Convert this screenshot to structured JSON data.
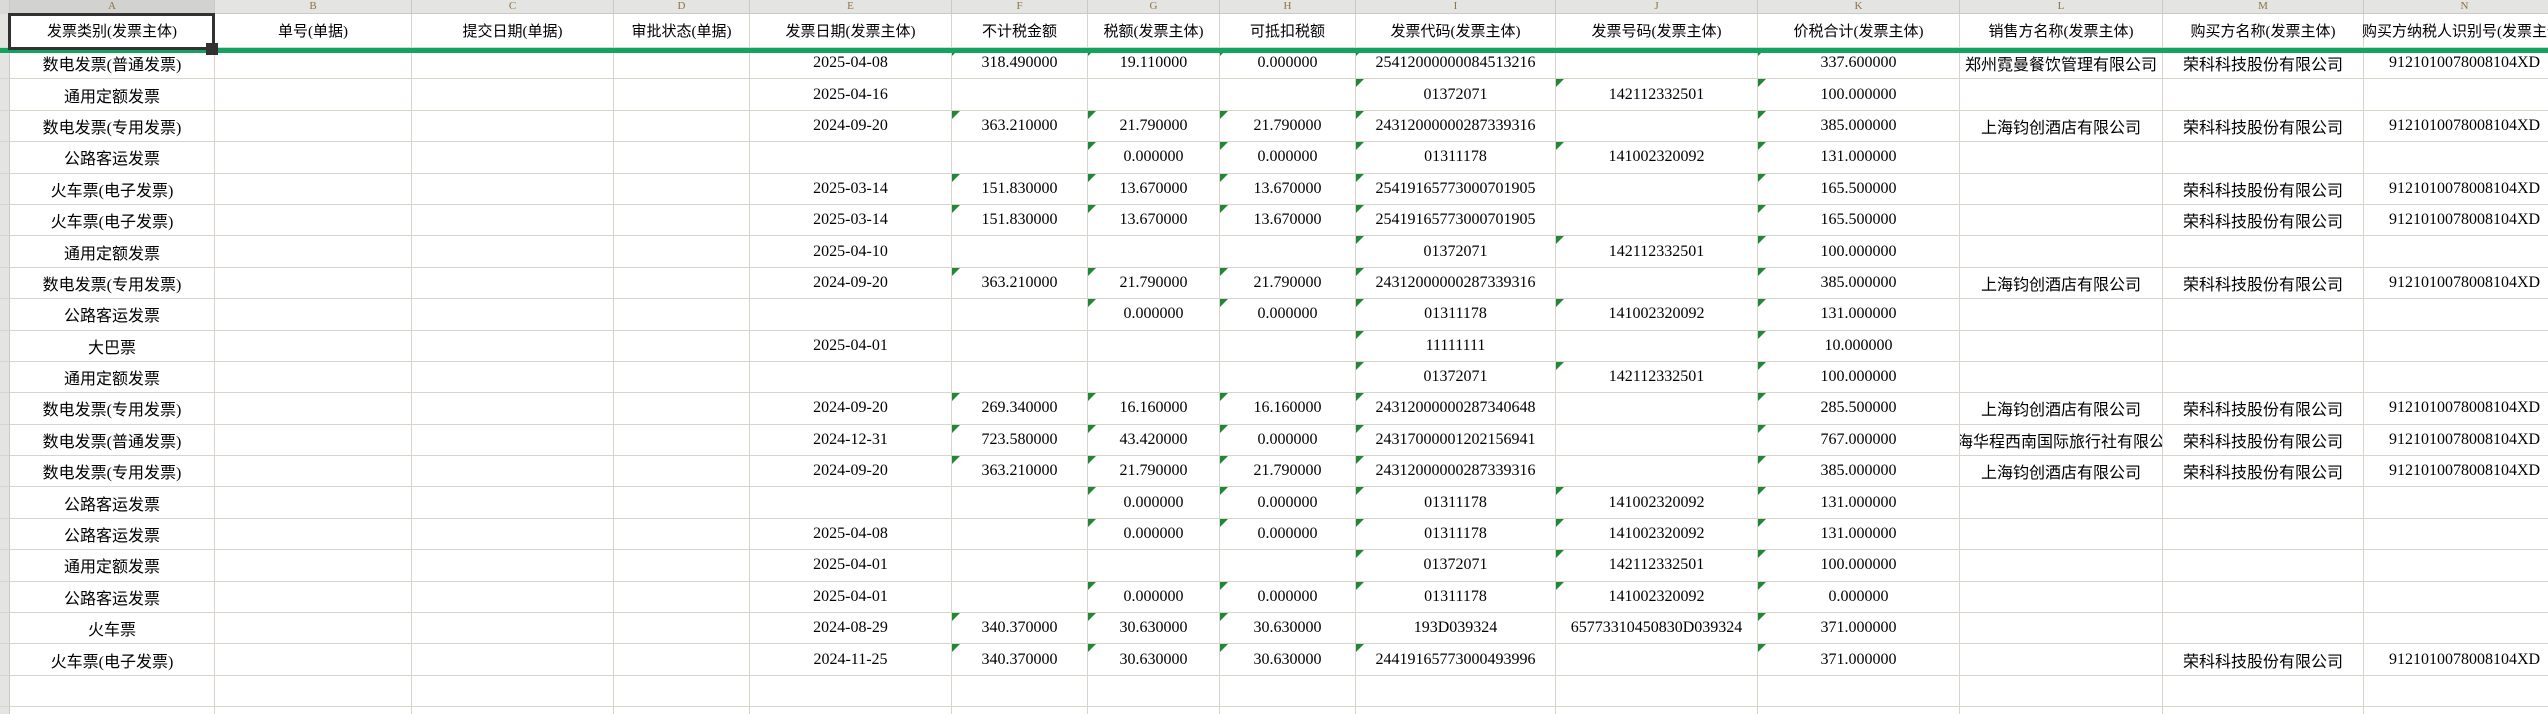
{
  "sheet": {
    "name": "invoice-spreadsheet",
    "colors": {
      "freeze_line_green": "#12a35f",
      "error_triangle_green": "#1f8736",
      "header_letter_gold": "#8f7340",
      "selection_border": "#323232",
      "gridline": "#d8d4cb"
    },
    "columns": [
      {
        "letter": "A",
        "header": "发票类别(发票主体)"
      },
      {
        "letter": "B",
        "header": "单号(单据)"
      },
      {
        "letter": "C",
        "header": "提交日期(单据)"
      },
      {
        "letter": "D",
        "header": "审批状态(单据)"
      },
      {
        "letter": "E",
        "header": "发票日期(发票主体)"
      },
      {
        "letter": "F",
        "header": "不计税金额"
      },
      {
        "letter": "G",
        "header": "税额(发票主体)"
      },
      {
        "letter": "H",
        "header": "可抵扣税额"
      },
      {
        "letter": "I",
        "header": "发票代码(发票主体)"
      },
      {
        "letter": "J",
        "header": "发票号码(发票主体)"
      },
      {
        "letter": "K",
        "header": "价税合计(发票主体)"
      },
      {
        "letter": "L",
        "header": "销售方名称(发票主体)"
      },
      {
        "letter": "M",
        "header": "购买方名称(发票主体)"
      },
      {
        "letter": "N",
        "header": "购买方纳税人识别号(发票主体)"
      }
    ],
    "rows": [
      {
        "a": "数电发票(普通发票)",
        "b": "",
        "c": "",
        "d": "",
        "e": "2025-04-08",
        "f": "318.490000",
        "g": "19.110000",
        "h": "0.000000",
        "i": "25412000000084513216",
        "j": "",
        "k": "337.600000",
        "l": "郑州霓曼餐饮管理有限公司",
        "m": "荣科科技股份有限公司",
        "n": "9121010078008104XD"
      },
      {
        "a": "通用定额发票",
        "b": "",
        "c": "",
        "d": "",
        "e": "2025-04-16",
        "f": "",
        "g": "",
        "h": "",
        "i": "01372071",
        "j": "142112332501",
        "k": "100.000000",
        "l": "",
        "m": "",
        "n": ""
      },
      {
        "a": "数电发票(专用发票)",
        "b": "",
        "c": "",
        "d": "",
        "e": "2024-09-20",
        "f": "363.210000",
        "g": "21.790000",
        "h": "21.790000",
        "i": "24312000000287339316",
        "j": "",
        "k": "385.000000",
        "l": "上海钧创酒店有限公司",
        "m": "荣科科技股份有限公司",
        "n": "9121010078008104XD"
      },
      {
        "a": "公路客运发票",
        "b": "",
        "c": "",
        "d": "",
        "e": "",
        "f": "",
        "g": "0.000000",
        "h": "0.000000",
        "i": "01311178",
        "j": "141002320092",
        "k": "131.000000",
        "l": "",
        "m": "",
        "n": ""
      },
      {
        "a": "火车票(电子发票)",
        "b": "",
        "c": "",
        "d": "",
        "e": "2025-03-14",
        "f": "151.830000",
        "g": "13.670000",
        "h": "13.670000",
        "i": "25419165773000701905",
        "j": "",
        "k": "165.500000",
        "l": "",
        "m": "荣科科技股份有限公司",
        "n": "9121010078008104XD"
      },
      {
        "a": "火车票(电子发票)",
        "b": "",
        "c": "",
        "d": "",
        "e": "2025-03-14",
        "f": "151.830000",
        "g": "13.670000",
        "h": "13.670000",
        "i": "25419165773000701905",
        "j": "",
        "k": "165.500000",
        "l": "",
        "m": "荣科科技股份有限公司",
        "n": "9121010078008104XD"
      },
      {
        "a": "通用定额发票",
        "b": "",
        "c": "",
        "d": "",
        "e": "2025-04-10",
        "f": "",
        "g": "",
        "h": "",
        "i": "01372071",
        "j": "142112332501",
        "k": "100.000000",
        "l": "",
        "m": "",
        "n": ""
      },
      {
        "a": "数电发票(专用发票)",
        "b": "",
        "c": "",
        "d": "",
        "e": "2024-09-20",
        "f": "363.210000",
        "g": "21.790000",
        "h": "21.790000",
        "i": "24312000000287339316",
        "j": "",
        "k": "385.000000",
        "l": "上海钧创酒店有限公司",
        "m": "荣科科技股份有限公司",
        "n": "9121010078008104XD"
      },
      {
        "a": "公路客运发票",
        "b": "",
        "c": "",
        "d": "",
        "e": "",
        "f": "",
        "g": "0.000000",
        "h": "0.000000",
        "i": "01311178",
        "j": "141002320092",
        "k": "131.000000",
        "l": "",
        "m": "",
        "n": ""
      },
      {
        "a": "大巴票",
        "b": "",
        "c": "",
        "d": "",
        "e": "2025-04-01",
        "f": "",
        "g": "",
        "h": "",
        "i": "11111111",
        "j": "",
        "k": "10.000000",
        "l": "",
        "m": "",
        "n": ""
      },
      {
        "a": "通用定额发票",
        "b": "",
        "c": "",
        "d": "",
        "e": "",
        "f": "",
        "g": "",
        "h": "",
        "i": "01372071",
        "j": "142112332501",
        "k": "100.000000",
        "l": "",
        "m": "",
        "n": ""
      },
      {
        "a": "数电发票(专用发票)",
        "b": "",
        "c": "",
        "d": "",
        "e": "2024-09-20",
        "f": "269.340000",
        "g": "16.160000",
        "h": "16.160000",
        "i": "24312000000287340648",
        "j": "",
        "k": "285.500000",
        "l": "上海钧创酒店有限公司",
        "m": "荣科科技股份有限公司",
        "n": "9121010078008104XD"
      },
      {
        "a": "数电发票(普通发票)",
        "b": "",
        "c": "",
        "d": "",
        "e": "2024-12-31",
        "f": "723.580000",
        "g": "43.420000",
        "h": "0.000000",
        "i": "24317000001202156941",
        "j": "",
        "k": "767.000000",
        "l": "上海华程西南国际旅行社有限公司",
        "m": "荣科科技股份有限公司",
        "n": "9121010078008104XD"
      },
      {
        "a": "数电发票(专用发票)",
        "b": "",
        "c": "",
        "d": "",
        "e": "2024-09-20",
        "f": "363.210000",
        "g": "21.790000",
        "h": "21.790000",
        "i": "24312000000287339316",
        "j": "",
        "k": "385.000000",
        "l": "上海钧创酒店有限公司",
        "m": "荣科科技股份有限公司",
        "n": "9121010078008104XD"
      },
      {
        "a": "公路客运发票",
        "b": "",
        "c": "",
        "d": "",
        "e": "",
        "f": "",
        "g": "0.000000",
        "h": "0.000000",
        "i": "01311178",
        "j": "141002320092",
        "k": "131.000000",
        "l": "",
        "m": "",
        "n": ""
      },
      {
        "a": "公路客运发票",
        "b": "",
        "c": "",
        "d": "",
        "e": "2025-04-08",
        "f": "",
        "g": "0.000000",
        "h": "0.000000",
        "i": "01311178",
        "j": "141002320092",
        "k": "131.000000",
        "l": "",
        "m": "",
        "n": ""
      },
      {
        "a": "通用定额发票",
        "b": "",
        "c": "",
        "d": "",
        "e": "2025-04-01",
        "f": "",
        "g": "",
        "h": "",
        "i": "01372071",
        "j": "142112332501",
        "k": "100.000000",
        "l": "",
        "m": "",
        "n": ""
      },
      {
        "a": "公路客运发票",
        "b": "",
        "c": "",
        "d": "",
        "e": "2025-04-01",
        "f": "",
        "g": "0.000000",
        "h": "0.000000",
        "i": "01311178",
        "j": "141002320092",
        "k": "0.000000",
        "l": "",
        "m": "",
        "n": ""
      },
      {
        "a": "火车票",
        "b": "",
        "c": "",
        "d": "",
        "e": "2024-08-29",
        "f": "340.370000",
        "g": "30.630000",
        "h": "30.630000",
        "i": "193D039324",
        "j": "65773310450830D039324",
        "k": "371.000000",
        "l": "",
        "m": "",
        "n": ""
      },
      {
        "a": "火车票(电子发票)",
        "b": "",
        "c": "",
        "d": "",
        "e": "2024-11-25",
        "f": "340.370000",
        "g": "30.630000",
        "h": "30.630000",
        "i": "24419165773000493996",
        "j": "",
        "k": "371.000000",
        "l": "",
        "m": "荣科科技股份有限公司",
        "n": "9121010078008104XD"
      },
      {
        "a": "",
        "b": "",
        "c": "",
        "d": "",
        "e": "",
        "f": "",
        "g": "",
        "h": "",
        "i": "",
        "j": "",
        "k": "",
        "l": "",
        "m": "",
        "n": ""
      },
      {
        "a": "",
        "b": "",
        "c": "",
        "d": "",
        "e": "",
        "f": "",
        "g": "",
        "h": "",
        "i": "",
        "j": "",
        "k": "",
        "l": "",
        "m": "",
        "n": ""
      }
    ]
  }
}
